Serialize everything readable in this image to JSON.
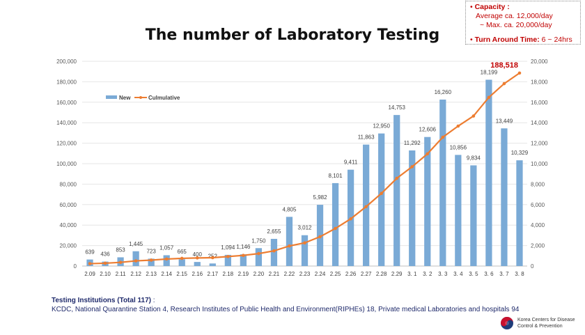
{
  "title": "The number of Laboratory Testing",
  "info": {
    "capacity_label": "Capacity :",
    "capacity_avg": "Average ca. 12,000/day",
    "capacity_max": "~ Max. ca. 20,000/day",
    "tat_label": "Turn Around Time:",
    "tat_value": "6 ~ 24hrs"
  },
  "footer": {
    "heading": "Testing Institutions (Total 117)",
    "heading_suffix": " :",
    "body": "KCDC, National Quarantine Station 4, Research Institutes of Public Health and Environment(RIPHEs) 18, Private medical Laboratories and hospitals 94"
  },
  "logo": {
    "line1": "Korea Centers for Disease",
    "line2": "Control & Prevention"
  },
  "chart_data": {
    "type": "bar+line",
    "title": "The number of Laboratory Testing",
    "categories": [
      "2.09",
      "2.10",
      "2.11",
      "2.12",
      "2.13",
      "2.14",
      "2.15",
      "2.16",
      "2.17",
      "2.18",
      "2.19",
      "2.20",
      "2.21",
      "2.22",
      "2.23",
      "2.24",
      "2.25",
      "2.26",
      "2.27",
      "2.28",
      "2.29",
      "3. 1",
      "3. 2",
      "3. 3",
      "3. 4",
      "3. 5",
      "3. 6",
      "3. 7",
      "3. 8"
    ],
    "series": [
      {
        "name": "New",
        "type": "bar",
        "axis": "right",
        "color": "#7aaad6",
        "values": [
          639,
          436,
          853,
          1445,
          723,
          1057,
          665,
          400,
          252,
          1094,
          1146,
          1750,
          2655,
          4805,
          3012,
          5982,
          8101,
          9411,
          11863,
          12950,
          14753,
          11292,
          12606,
          16260,
          10856,
          9834,
          18199,
          13449,
          10329
        ],
        "labels": [
          "639",
          "436",
          "853",
          "1,445",
          "723",
          "1,057",
          "665",
          "400",
          "252",
          "1,094",
          "1,146",
          "1,750",
          "2,655",
          "4,805",
          "3,012",
          "5,982",
          "8,101",
          "9,411",
          "11,863",
          "12,950",
          "14,753",
          "11,292",
          "12,606",
          "16,260",
          "10,856",
          "9,834",
          "18,199",
          "13,449",
          "10,329"
        ]
      },
      {
        "name": "Culmulative",
        "type": "line",
        "axis": "left",
        "color": "#ed7d31",
        "values": [
          2340,
          2776,
          3629,
          5074,
          5797,
          6854,
          7519,
          7919,
          8171,
          9265,
          10411,
          12161,
          14816,
          19621,
          22633,
          28615,
          36716,
          46127,
          57990,
          70940,
          85693,
          96985,
          109591,
          125851,
          136707,
          146541,
          164740,
          178189,
          188518
        ],
        "end_label": "188,518",
        "end_label_color": "#c00000"
      }
    ],
    "left_axis": {
      "range": [
        0,
        200000
      ],
      "ticks": [
        "0",
        "20,000",
        "40,000",
        "60,000",
        "80,000",
        "100,000",
        "120,000",
        "140,000",
        "160,000",
        "180,000",
        "200,000"
      ]
    },
    "right_axis": {
      "range": [
        0,
        20000
      ],
      "ticks": [
        "0",
        "2,000",
        "4,000",
        "6,000",
        "8,000",
        "10,000",
        "12,000",
        "14,000",
        "16,000",
        "18,000",
        "20,000"
      ]
    },
    "grid": true,
    "legend": "top-left"
  }
}
